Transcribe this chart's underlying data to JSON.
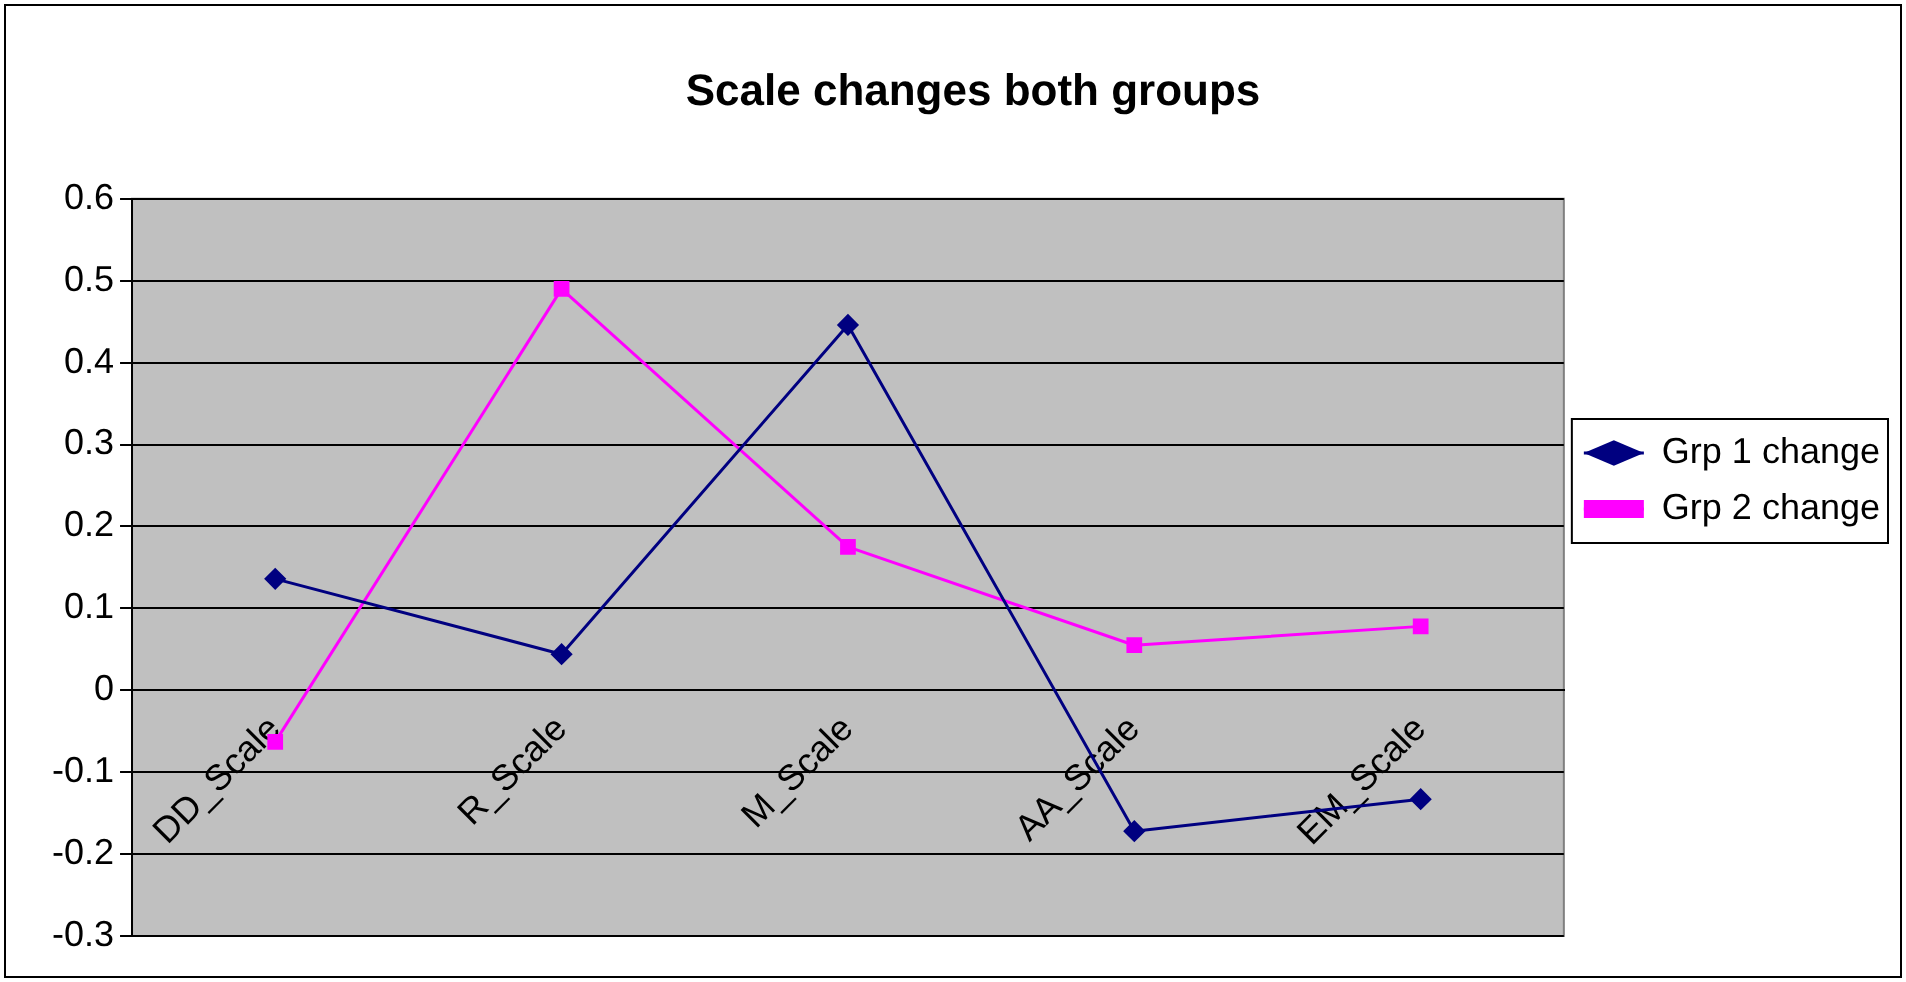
{
  "chart_data": {
    "type": "line",
    "title": "Scale changes both groups",
    "categories": [
      "DD_Scale",
      "R_Scale",
      "M_Scale",
      "AA_Scale",
      "EM_Scale"
    ],
    "series": [
      {
        "name": "Grp 1 change",
        "color": "#000080",
        "marker": "diamond",
        "values": [
          0.136,
          0.044,
          0.446,
          -0.172,
          -0.133
        ]
      },
      {
        "name": "Grp 2 change",
        "color": "#ff00ff",
        "marker": "square",
        "values": [
          -0.063,
          0.49,
          0.175,
          0.055,
          0.078
        ]
      }
    ],
    "ylim": [
      -0.3,
      0.6
    ],
    "yticks": [
      -0.3,
      -0.2,
      -0.1,
      0,
      0.1,
      0.2,
      0.3,
      0.4,
      0.5,
      0.6
    ],
    "grid": "y",
    "legend": "right"
  }
}
